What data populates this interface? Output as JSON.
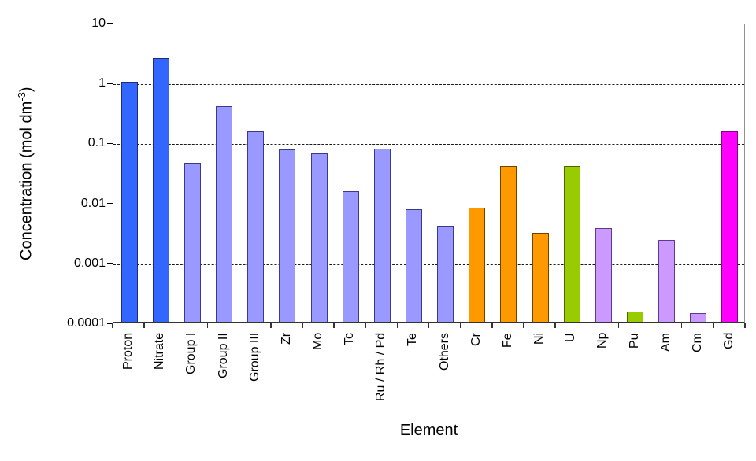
{
  "chart_data": {
    "type": "bar",
    "title": "",
    "xlabel": "Element",
    "ylabel": {
      "main": "Concentration (mol dm",
      "sup": "-3",
      "close": ")"
    },
    "y_scale": "log",
    "ylim": [
      0.0001,
      10
    ],
    "y_ticks": [
      "10",
      "1",
      "0.1",
      "0.01",
      "0.001",
      "0.0001"
    ],
    "y_tick_values": [
      10,
      1,
      0.1,
      0.01,
      0.001,
      0.0001
    ],
    "grid": "horizontal-dashed",
    "legend": "none",
    "categories": [
      "Proton",
      "Nitrate",
      "Group I",
      "Group II",
      "Group III",
      "Zr",
      "Mo",
      "Tc",
      "Ru / Rh / Pd",
      "Te",
      "Others",
      "Cr",
      "Fe",
      "Ni",
      "U",
      "Np",
      "Pu",
      "Am",
      "Cm",
      "Gd"
    ],
    "bars": [
      {
        "label": "Proton",
        "value": 1.0,
        "color": "blue"
      },
      {
        "label": "Nitrate",
        "value": 2.5,
        "color": "blue"
      },
      {
        "label": "Group I",
        "value": 0.045,
        "color": "periwinkle"
      },
      {
        "label": "Group II",
        "value": 0.4,
        "color": "periwinkle"
      },
      {
        "label": "Group III",
        "value": 0.15,
        "color": "periwinkle"
      },
      {
        "label": "Zr",
        "value": 0.075,
        "color": "periwinkle"
      },
      {
        "label": "Mo",
        "value": 0.065,
        "color": "periwinkle"
      },
      {
        "label": "Tc",
        "value": 0.015,
        "color": "periwinkle"
      },
      {
        "label": "Ru / Rh / Pd",
        "value": 0.078,
        "color": "periwinkle"
      },
      {
        "label": "Te",
        "value": 0.0075,
        "color": "periwinkle"
      },
      {
        "label": "Others",
        "value": 0.004,
        "color": "periwinkle"
      },
      {
        "label": "Cr",
        "value": 0.008,
        "color": "orange"
      },
      {
        "label": "Fe",
        "value": 0.04,
        "color": "orange"
      },
      {
        "label": "Ni",
        "value": 0.003,
        "color": "orange"
      },
      {
        "label": "U",
        "value": 0.04,
        "color": "green"
      },
      {
        "label": "Np",
        "value": 0.0036,
        "color": "lavender"
      },
      {
        "label": "Pu",
        "value": 0.00015,
        "color": "green"
      },
      {
        "label": "Am",
        "value": 0.0023,
        "color": "lavender"
      },
      {
        "label": "Cm",
        "value": 0.00014,
        "color": "lavender"
      },
      {
        "label": "Gd",
        "value": 0.15,
        "color": "magenta"
      }
    ],
    "palette": {
      "blue": {
        "fill": "#3366FF",
        "border": "#1B2C7E"
      },
      "periwinkle": {
        "fill": "#9999FF",
        "border": "#3A3A8C"
      },
      "orange": {
        "fill": "#FF9900",
        "border": "#6E4400"
      },
      "green": {
        "fill": "#99CC00",
        "border": "#4D6600"
      },
      "lavender": {
        "fill": "#CC99FF",
        "border": "#5C3A8E"
      },
      "magenta": {
        "fill": "#FF00FF",
        "border": "#7E0A85"
      }
    }
  }
}
